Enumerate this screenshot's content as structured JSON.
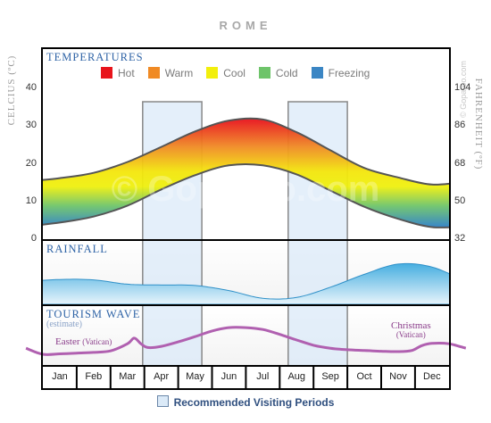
{
  "title": "ROME",
  "watermark": "© Goparoo.com",
  "credit": "© Goparoo.com",
  "panels": {
    "temperatures": "TEMPERATURES",
    "rainfall": "RAINFALL",
    "tourism": "TOURISM WAVE",
    "tourism_sub": "(estimate)"
  },
  "annotations": {
    "easter": "Easter",
    "easter_sub": "(Vatican)",
    "christmas": "Christmas",
    "christmas_sub": "(Vatican)"
  },
  "recommended_legend": "Recommended Visiting Periods",
  "colors": {
    "hot": "#e8141b",
    "warm": "#f08a24",
    "cool": "#f2ef0c",
    "cold": "#6ec46a",
    "freezing": "#3b86c4",
    "rain": "#3aa0d8",
    "tourism": "#b060b0",
    "recommended": "#dbeaf8"
  },
  "chart_data": {
    "type": "area",
    "title": "ROME",
    "months": [
      "Jan",
      "Feb",
      "Mar",
      "Apr",
      "May",
      "Jun",
      "Jul",
      "Aug",
      "Sep",
      "Oct",
      "Nov",
      "Dec"
    ],
    "temperature": {
      "ylabel_left": "CELCIUS (ºC)",
      "ylabel_right": "FAHRENHEIT (ºF)",
      "celsius_ticks": [
        "0",
        "10",
        "20",
        "30",
        "40"
      ],
      "fahrenheit_ticks": [
        "32",
        "50",
        "68",
        "86",
        "104"
      ],
      "ylim_c": [
        0,
        50
      ],
      "legend": [
        {
          "label": "Hot",
          "color": "#e8141b"
        },
        {
          "label": "Warm",
          "color": "#f08a24"
        },
        {
          "label": "Cool",
          "color": "#f2ef0c"
        },
        {
          "label": "Cold",
          "color": "#6ec46a"
        },
        {
          "label": "Freezing",
          "color": "#3b86c4"
        }
      ],
      "x": [
        0,
        1,
        2,
        3,
        4,
        5,
        6,
        7,
        8,
        9,
        10,
        11,
        12,
        13
      ],
      "high": [
        15.3,
        16.2,
        17.6,
        20.5,
        24.5,
        28.6,
        31.5,
        31.8,
        28.4,
        23.6,
        18.9,
        16.4,
        14.5,
        15.3
      ],
      "low": [
        3.4,
        4.4,
        6.0,
        8.9,
        13.2,
        17.0,
        19.6,
        19.6,
        17.2,
        12.9,
        8.6,
        5.4,
        3.2,
        3.4
      ]
    },
    "rainfall": {
      "x": [
        0,
        1,
        2,
        3,
        4,
        5,
        6,
        7,
        8,
        9,
        10,
        11,
        12,
        13
      ],
      "values": [
        0.53,
        0.58,
        0.57,
        0.47,
        0.45,
        0.44,
        0.32,
        0.14,
        0.16,
        0.4,
        0.7,
        0.94,
        0.87,
        0.53
      ]
    },
    "tourism": {
      "x": [
        0,
        0.5,
        1,
        1.5,
        2,
        2.5,
        3,
        3.2,
        3.4,
        3.6,
        4,
        4.5,
        5,
        5.5,
        6,
        6.5,
        7,
        7.5,
        8,
        8.5,
        9,
        9.5,
        10,
        10.5,
        11,
        11.4,
        11.7,
        12,
        12.5,
        13
      ],
      "values": [
        0.28,
        0.12,
        0.13,
        0.15,
        0.17,
        0.21,
        0.4,
        0.55,
        0.4,
        0.3,
        0.33,
        0.45,
        0.59,
        0.74,
        0.83,
        0.83,
        0.78,
        0.65,
        0.5,
        0.36,
        0.28,
        0.24,
        0.22,
        0.2,
        0.19,
        0.22,
        0.35,
        0.41,
        0.4,
        0.28
      ]
    },
    "recommended_periods": [
      [
        3.45,
        5.2
      ],
      [
        7.75,
        9.5
      ]
    ]
  }
}
